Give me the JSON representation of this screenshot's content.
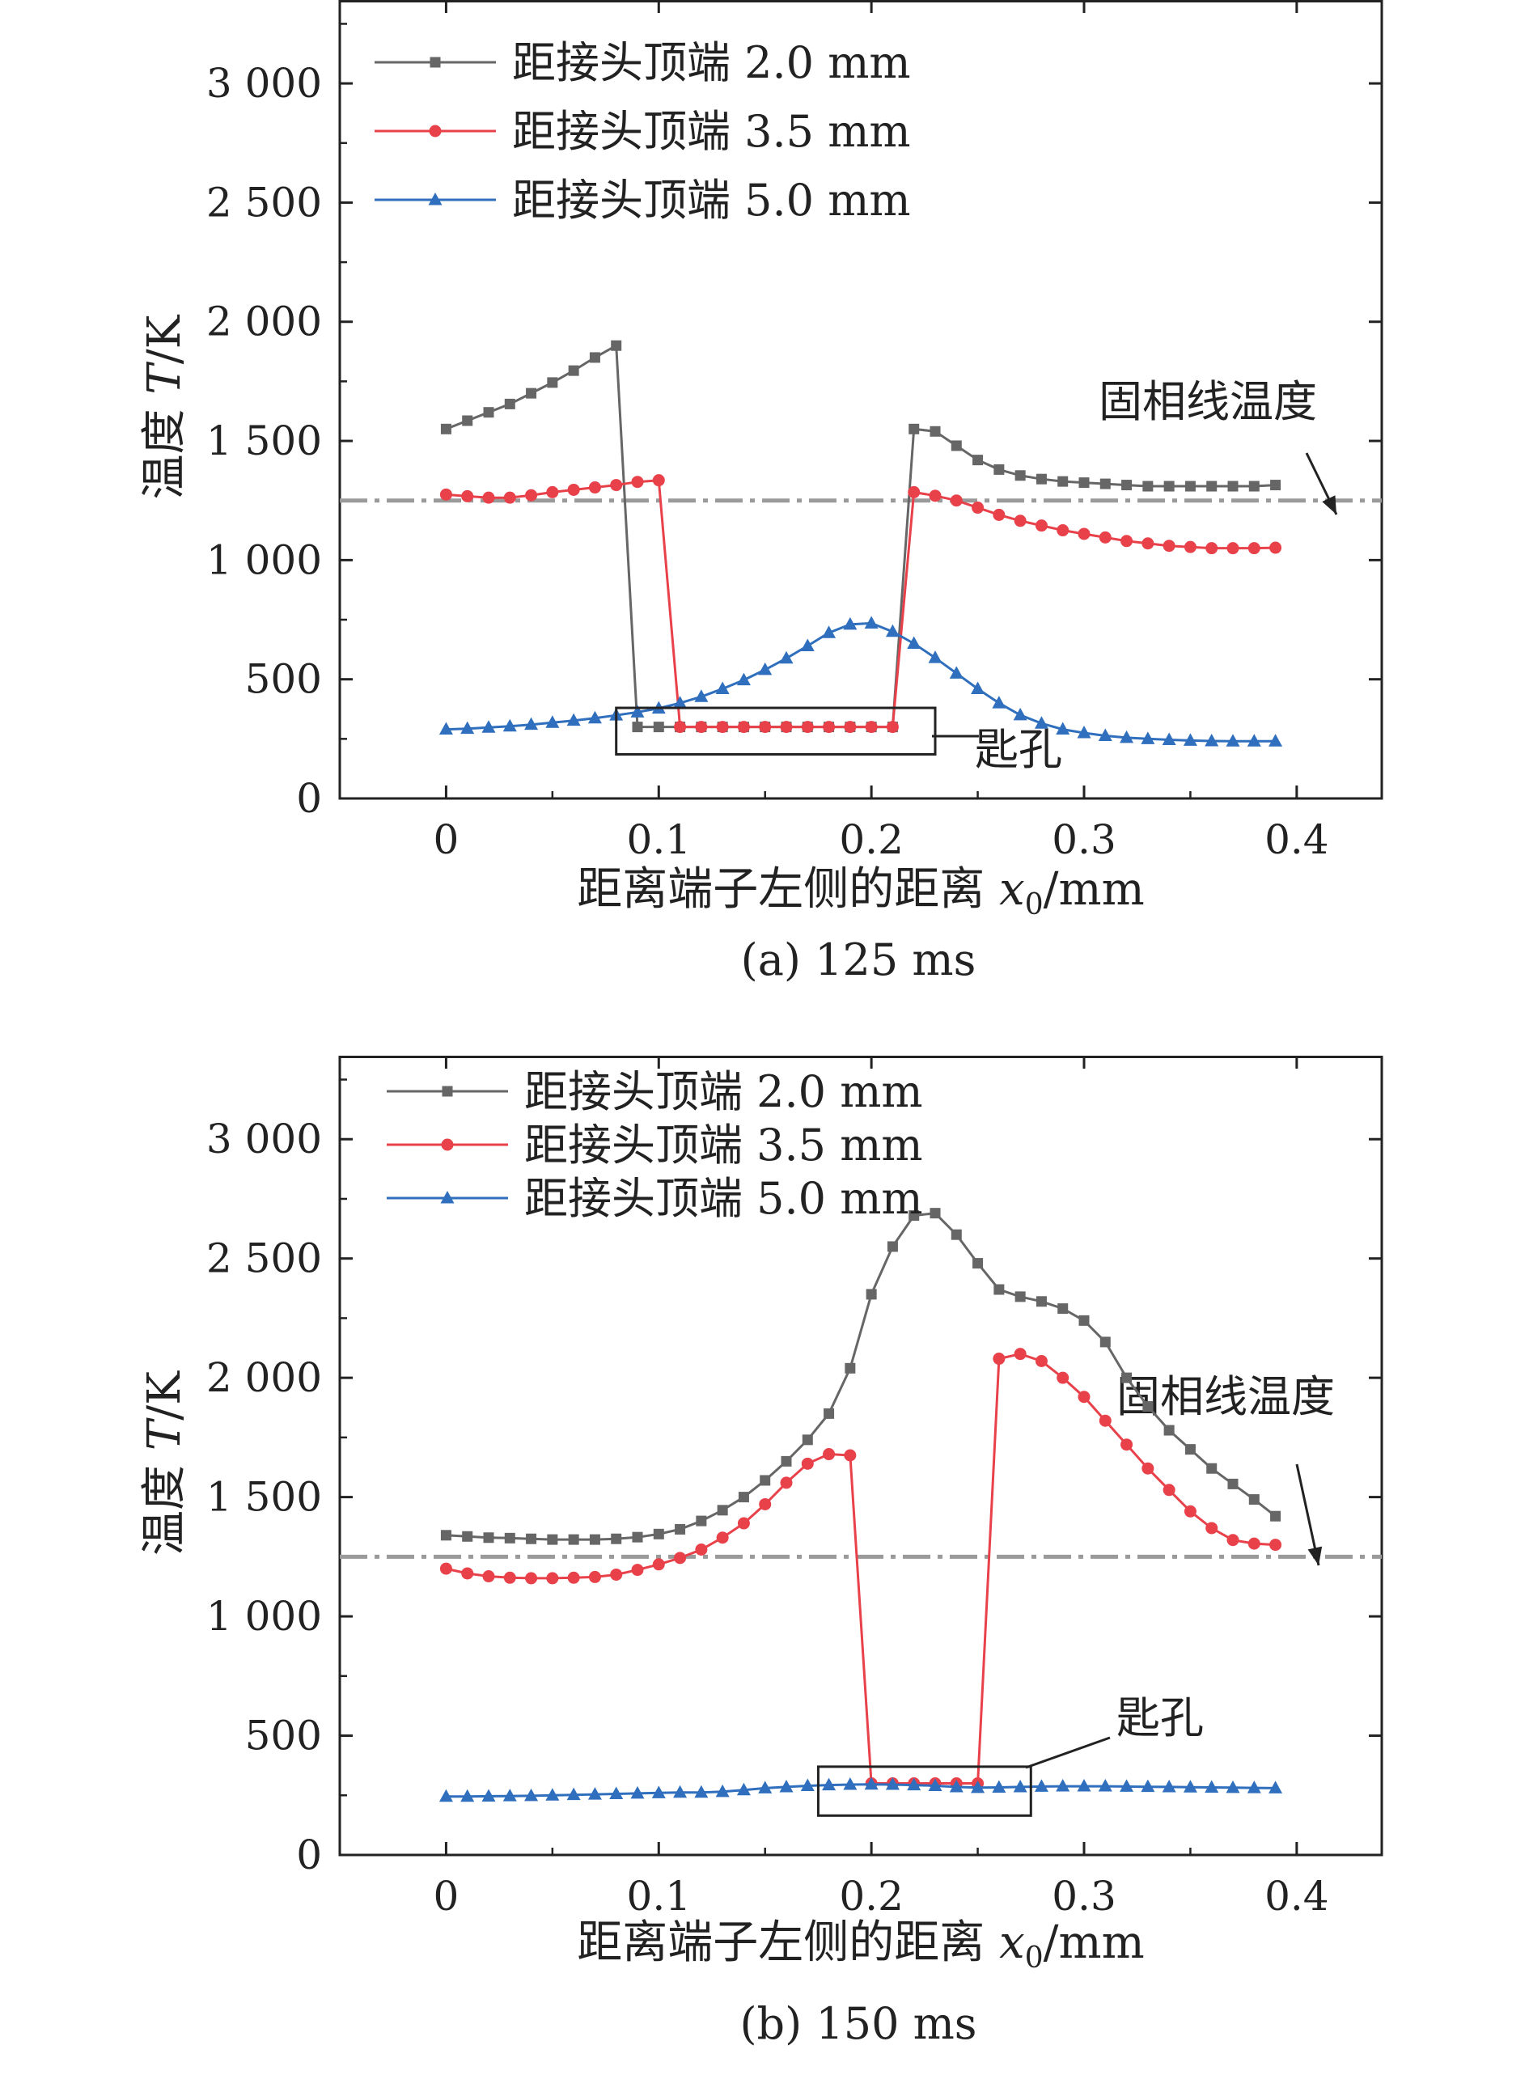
{
  "chart_data": [
    {
      "type": "line",
      "panel_label": "(a) 125 ms",
      "xlabel_text": "距离端子左侧的距离 ",
      "xlabel_var": "x",
      "xlabel_sub": "0",
      "xlabel_unit": "/mm",
      "ylabel_text": "温度 ",
      "ylabel_var": "T",
      "ylabel_unit": "/K",
      "xlim": [
        -0.05,
        0.44
      ],
      "ylim": [
        0,
        3350
      ],
      "xticks": [
        0,
        0.1,
        0.2,
        0.3,
        0.4
      ],
      "xtick_labels": [
        "0",
        "0.1",
        "0.2",
        "0.3",
        "0.4"
      ],
      "yticks": [
        0,
        500,
        1000,
        1500,
        2000,
        2500,
        3000
      ],
      "ytick_labels": [
        "0",
        "500",
        "1 000",
        "1 500",
        "2 000",
        "2 500",
        "3 000"
      ],
      "grid": false,
      "legend_position": "top-left",
      "reference_line": {
        "y": 1250,
        "label": "固相线温度"
      },
      "keyhole_label": "匙孔",
      "keyhole_box_data": {
        "x": [
          0.08,
          0.23
        ],
        "y": [
          185,
          380
        ]
      },
      "series": [
        {
          "name": "距接头顶端 2.0 mm",
          "color": "#666666",
          "marker": "square",
          "x": [
            0,
            0.01,
            0.02,
            0.03,
            0.04,
            0.05,
            0.06,
            0.07,
            0.08,
            0.09,
            0.1,
            0.11,
            0.12,
            0.13,
            0.14,
            0.15,
            0.16,
            0.17,
            0.18,
            0.19,
            0.2,
            0.21,
            0.22,
            0.23,
            0.24,
            0.25,
            0.26,
            0.27,
            0.28,
            0.29,
            0.3,
            0.31,
            0.32,
            0.33,
            0.34,
            0.35,
            0.36,
            0.37,
            0.38,
            0.39
          ],
          "y": [
            1550,
            1585,
            1620,
            1655,
            1700,
            1745,
            1795,
            1850,
            1900,
            300,
            300,
            300,
            300,
            300,
            300,
            300,
            300,
            300,
            300,
            300,
            300,
            300,
            1550,
            1540,
            1480,
            1420,
            1380,
            1355,
            1340,
            1330,
            1325,
            1320,
            1315,
            1310,
            1310,
            1310,
            1310,
            1310,
            1310,
            1315
          ]
        },
        {
          "name": "距接头顶端 3.5 mm",
          "color": "#e8414a",
          "marker": "circle",
          "x": [
            0,
            0.01,
            0.02,
            0.03,
            0.04,
            0.05,
            0.06,
            0.07,
            0.08,
            0.09,
            0.1,
            0.11,
            0.12,
            0.13,
            0.14,
            0.15,
            0.16,
            0.17,
            0.18,
            0.19,
            0.2,
            0.21,
            0.22,
            0.23,
            0.24,
            0.25,
            0.26,
            0.27,
            0.28,
            0.29,
            0.3,
            0.31,
            0.32,
            0.33,
            0.34,
            0.35,
            0.36,
            0.37,
            0.38,
            0.39
          ],
          "y": [
            1275,
            1268,
            1262,
            1262,
            1272,
            1285,
            1295,
            1305,
            1315,
            1328,
            1335,
            300,
            300,
            300,
            300,
            300,
            300,
            300,
            300,
            300,
            300,
            300,
            1285,
            1270,
            1250,
            1220,
            1190,
            1165,
            1145,
            1125,
            1110,
            1095,
            1080,
            1070,
            1060,
            1055,
            1050,
            1050,
            1050,
            1052
          ]
        },
        {
          "name": "距接头顶端 5.0 mm",
          "color": "#2f6fbd",
          "marker": "triangle",
          "x": [
            0,
            0.01,
            0.02,
            0.03,
            0.04,
            0.05,
            0.06,
            0.07,
            0.08,
            0.09,
            0.1,
            0.11,
            0.12,
            0.13,
            0.14,
            0.15,
            0.16,
            0.17,
            0.18,
            0.19,
            0.2,
            0.21,
            0.22,
            0.23,
            0.24,
            0.25,
            0.26,
            0.27,
            0.28,
            0.29,
            0.3,
            0.31,
            0.32,
            0.33,
            0.34,
            0.35,
            0.36,
            0.37,
            0.38,
            0.39
          ],
          "y": [
            290,
            293,
            298,
            303,
            310,
            318,
            327,
            337,
            349,
            362,
            378,
            400,
            427,
            460,
            497,
            540,
            588,
            640,
            695,
            730,
            735,
            700,
            650,
            590,
            525,
            460,
            400,
            350,
            315,
            290,
            275,
            263,
            255,
            250,
            246,
            243,
            241,
            240,
            240,
            240
          ]
        }
      ]
    },
    {
      "type": "line",
      "panel_label": "(b) 150 ms",
      "xlabel_text": "距离端子左侧的距离 ",
      "xlabel_var": "x",
      "xlabel_sub": "0",
      "xlabel_unit": "/mm",
      "ylabel_text": "温度 ",
      "ylabel_var": "T",
      "ylabel_unit": "/K",
      "xlim": [
        -0.05,
        0.44
      ],
      "ylim": [
        0,
        3350
      ],
      "xticks": [
        0,
        0.1,
        0.2,
        0.3,
        0.4
      ],
      "xtick_labels": [
        "0",
        "0.1",
        "0.2",
        "0.3",
        "0.4"
      ],
      "yticks": [
        0,
        500,
        1000,
        1500,
        2000,
        2500,
        3000
      ],
      "ytick_labels": [
        "0",
        "500",
        "1 000",
        "1 500",
        "2 000",
        "2 500",
        "3 000"
      ],
      "grid": false,
      "legend_position": "top-left",
      "reference_line": {
        "y": 1250,
        "label": "固相线温度"
      },
      "keyhole_label": "匙孔",
      "keyhole_box_data": {
        "x": [
          0.175,
          0.275
        ],
        "y": [
          165,
          370
        ]
      },
      "series": [
        {
          "name": "距接头顶端 2.0 mm",
          "color": "#666666",
          "marker": "square",
          "x": [
            0,
            0.01,
            0.02,
            0.03,
            0.04,
            0.05,
            0.06,
            0.07,
            0.08,
            0.09,
            0.1,
            0.11,
            0.12,
            0.13,
            0.14,
            0.15,
            0.16,
            0.17,
            0.18,
            0.19,
            0.2,
            0.21,
            0.22,
            0.23,
            0.24,
            0.25,
            0.26,
            0.27,
            0.28,
            0.29,
            0.3,
            0.31,
            0.32,
            0.33,
            0.34,
            0.35,
            0.36,
            0.37,
            0.38,
            0.39
          ],
          "y": [
            1340,
            1335,
            1330,
            1328,
            1325,
            1322,
            1322,
            1322,
            1325,
            1332,
            1345,
            1365,
            1400,
            1445,
            1500,
            1570,
            1650,
            1740,
            1850,
            2040,
            2350,
            2550,
            2680,
            2690,
            2600,
            2480,
            2370,
            2340,
            2320,
            2290,
            2240,
            2150,
            2000,
            1880,
            1780,
            1700,
            1620,
            1555,
            1490,
            1420
          ]
        },
        {
          "name": "距接头顶端 3.5 mm",
          "color": "#e8414a",
          "marker": "circle",
          "x": [
            0,
            0.01,
            0.02,
            0.03,
            0.04,
            0.05,
            0.06,
            0.07,
            0.08,
            0.09,
            0.1,
            0.11,
            0.12,
            0.13,
            0.14,
            0.15,
            0.16,
            0.17,
            0.18,
            0.19,
            0.2,
            0.21,
            0.22,
            0.23,
            0.24,
            0.25,
            0.26,
            0.27,
            0.28,
            0.29,
            0.3,
            0.31,
            0.32,
            0.33,
            0.34,
            0.35,
            0.36,
            0.37,
            0.38,
            0.39
          ],
          "y": [
            1200,
            1180,
            1168,
            1162,
            1160,
            1160,
            1162,
            1165,
            1175,
            1195,
            1218,
            1245,
            1280,
            1330,
            1390,
            1470,
            1560,
            1640,
            1680,
            1675,
            300,
            300,
            300,
            300,
            300,
            300,
            2080,
            2100,
            2070,
            2000,
            1920,
            1820,
            1720,
            1620,
            1530,
            1440,
            1370,
            1320,
            1305,
            1300
          ]
        },
        {
          "name": "距接头顶端 5.0 mm",
          "color": "#2f6fbd",
          "marker": "triangle",
          "x": [
            0,
            0.01,
            0.02,
            0.03,
            0.04,
            0.05,
            0.06,
            0.07,
            0.08,
            0.09,
            0.1,
            0.11,
            0.12,
            0.13,
            0.14,
            0.15,
            0.16,
            0.17,
            0.18,
            0.19,
            0.2,
            0.21,
            0.22,
            0.23,
            0.24,
            0.25,
            0.26,
            0.27,
            0.28,
            0.29,
            0.3,
            0.31,
            0.32,
            0.33,
            0.34,
            0.35,
            0.36,
            0.37,
            0.38,
            0.39
          ],
          "y": [
            245,
            245,
            246,
            247,
            248,
            250,
            252,
            254,
            256,
            258,
            260,
            262,
            262,
            265,
            272,
            280,
            285,
            290,
            293,
            295,
            296,
            295,
            293,
            290,
            285,
            282,
            283,
            285,
            287,
            288,
            288,
            288,
            287,
            286,
            285,
            284,
            283,
            282,
            281,
            280
          ]
        }
      ]
    }
  ]
}
